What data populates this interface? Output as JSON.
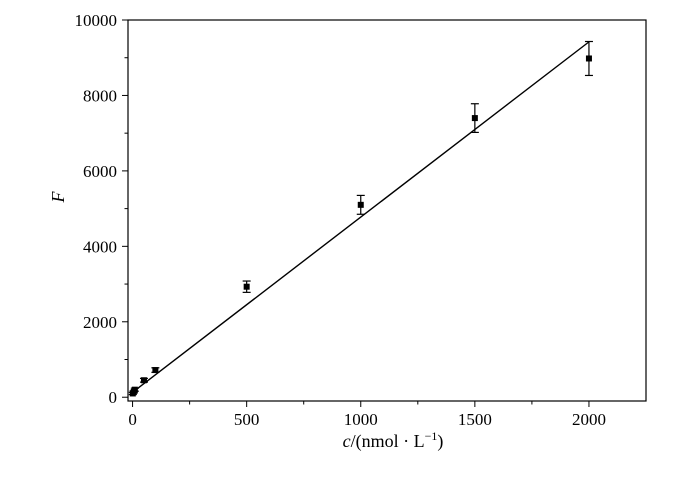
{
  "chart_data": {
    "type": "scatter",
    "xlabel_var": "c",
    "xlabel_rest": "/(nmol · L",
    "xlabel_sup": "−1",
    "xlabel_close": ")",
    "ylabel": "F",
    "xlim": [
      -20,
      2250
    ],
    "ylim": [
      -100,
      10000
    ],
    "xticks": [
      0,
      500,
      1000,
      1500,
      2000
    ],
    "yticks": [
      0,
      2000,
      4000,
      6000,
      8000,
      10000
    ],
    "grid": false,
    "series": [
      {
        "points": [
          {
            "x": 1,
            "y": 100,
            "err": 30
          },
          {
            "x": 5,
            "y": 140,
            "err": 30
          },
          {
            "x": 10,
            "y": 200,
            "err": 40
          },
          {
            "x": 50,
            "y": 450,
            "err": 50
          },
          {
            "x": 100,
            "y": 720,
            "err": 60
          },
          {
            "x": 500,
            "y": 2930,
            "err": 150
          },
          {
            "x": 1000,
            "y": 5100,
            "err": 250
          },
          {
            "x": 1500,
            "y": 7400,
            "err": 380
          },
          {
            "x": 2000,
            "y": 8980,
            "err": 450
          }
        ]
      }
    ],
    "fit_line": {
      "x": [
        0,
        2000
      ],
      "y": [
        130,
        9420
      ]
    }
  }
}
